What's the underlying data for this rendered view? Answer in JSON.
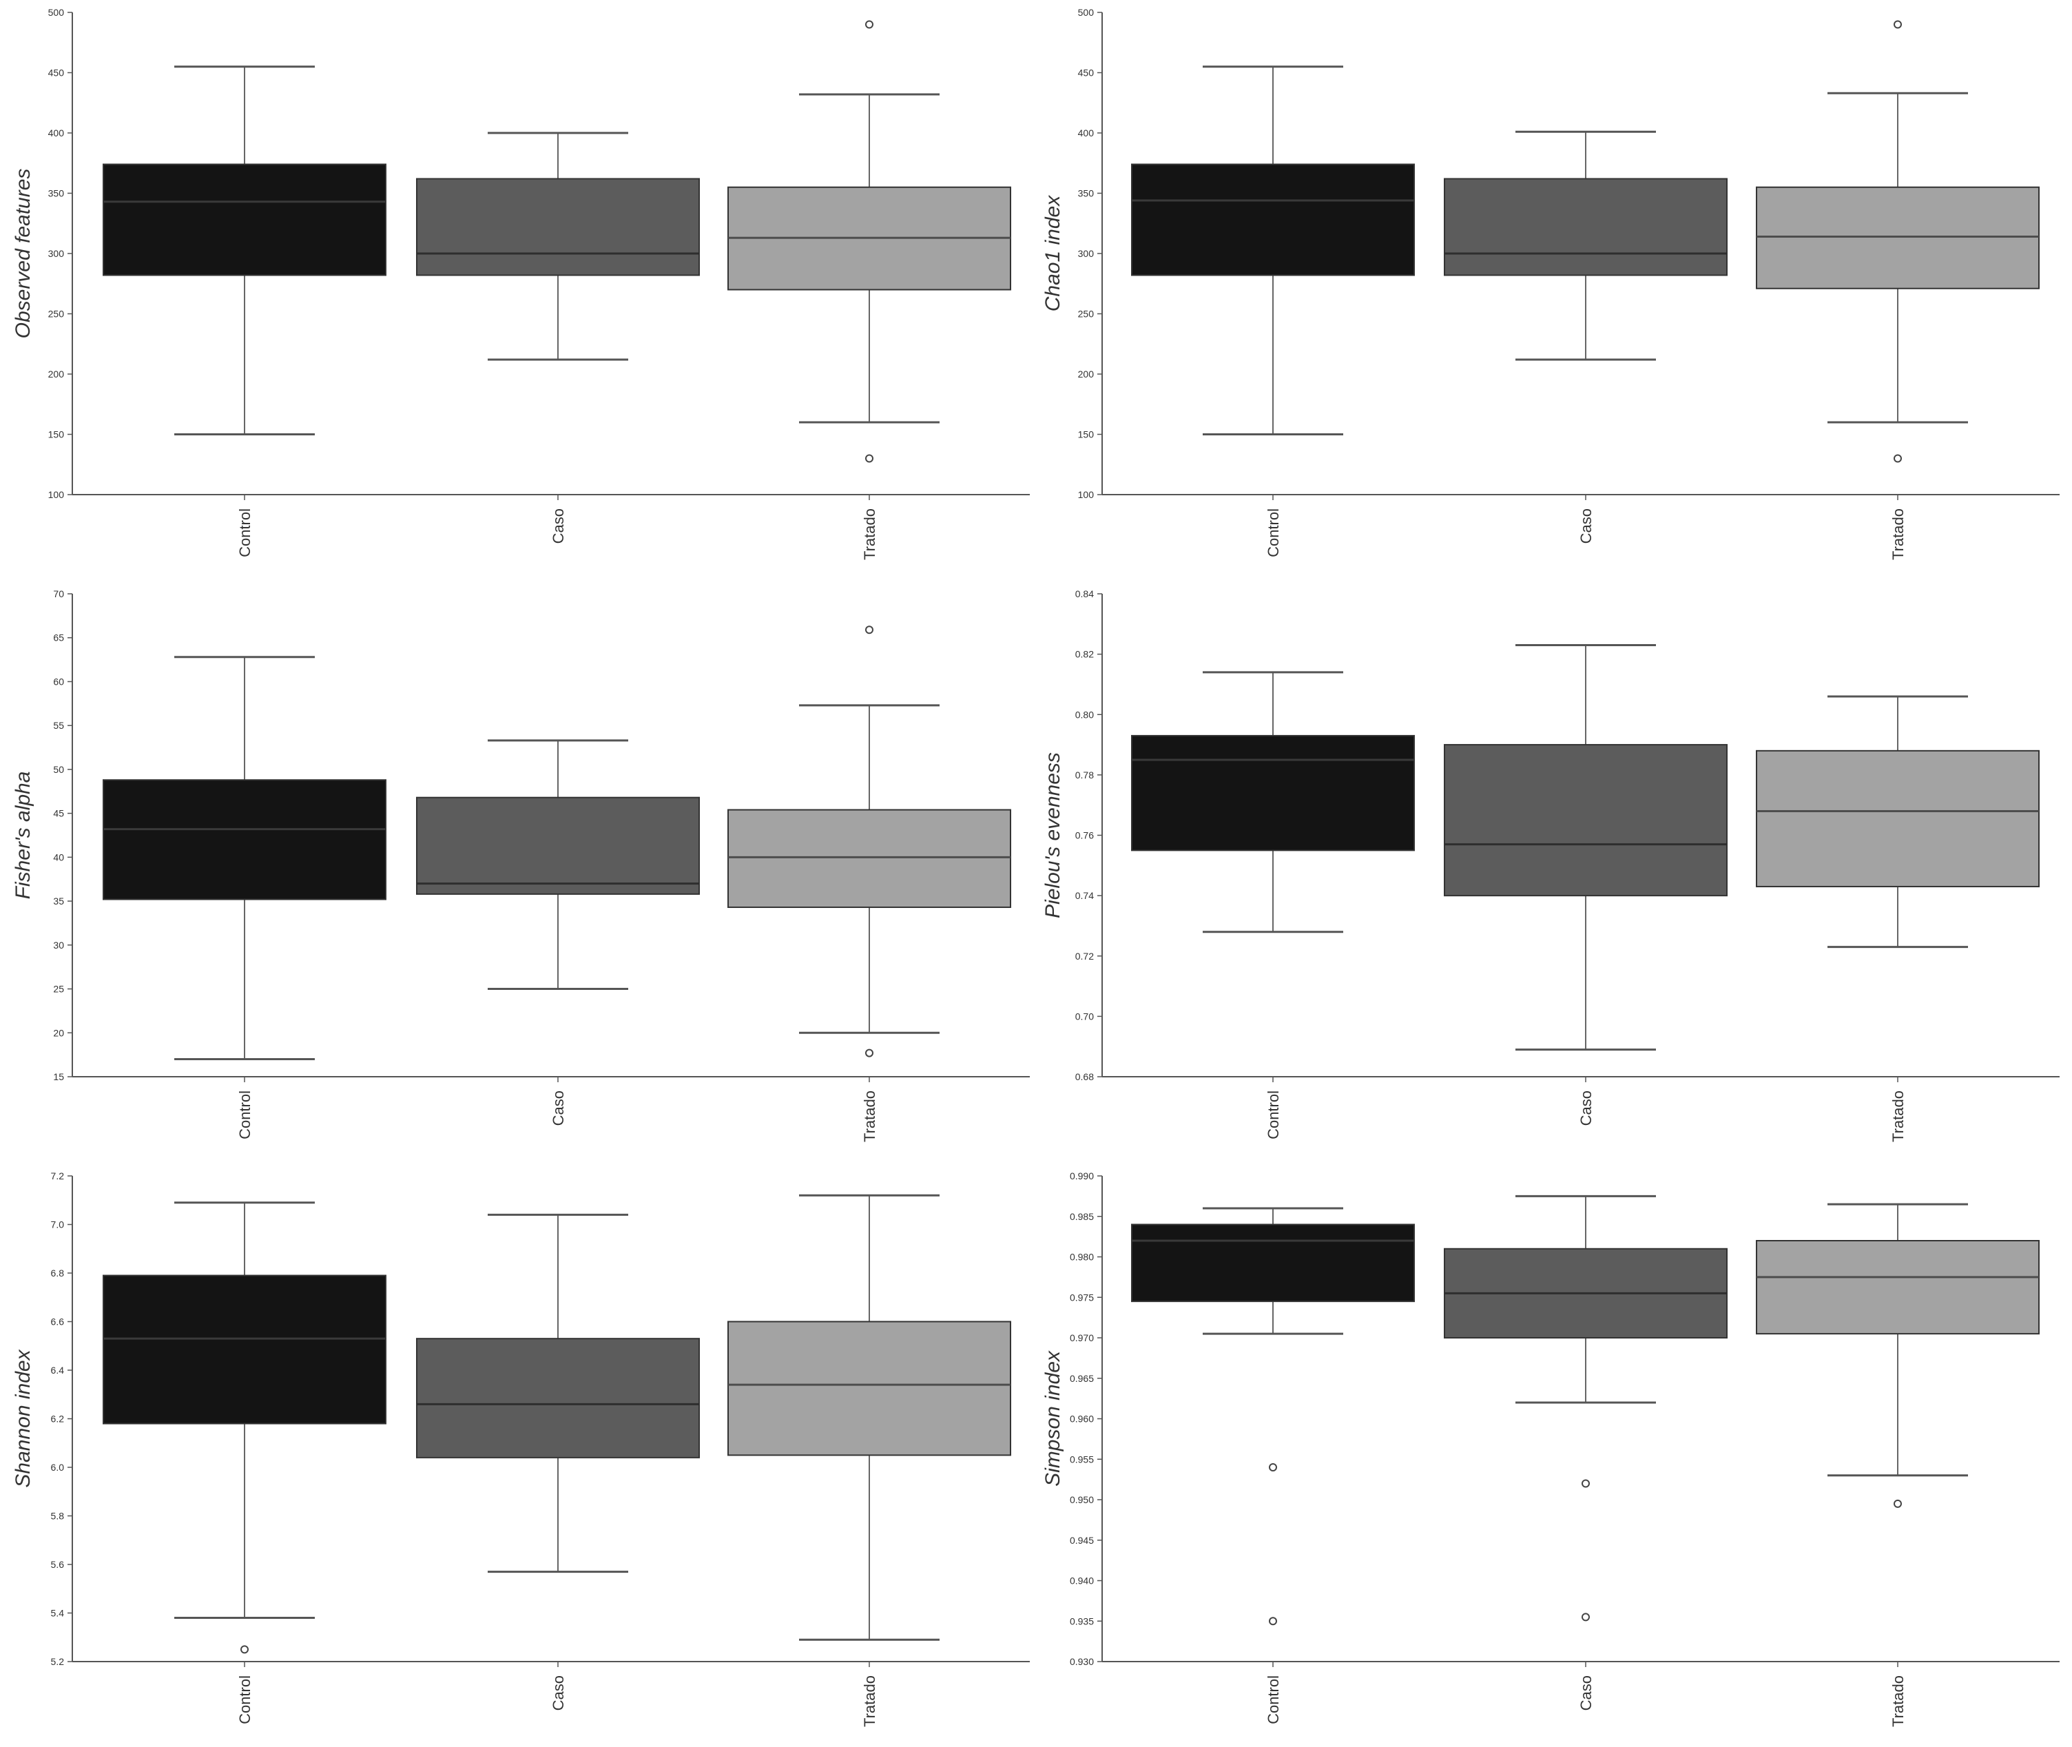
{
  "chart_data": [
    {
      "type": "box",
      "ylabel": "Observed features",
      "categories": [
        "Control",
        "Caso",
        "Tratado"
      ],
      "ylim": [
        100,
        500
      ],
      "yticks": [
        100,
        150,
        200,
        250,
        300,
        350,
        400,
        450,
        500
      ],
      "ytick_labels": [
        "100",
        "150",
        "200",
        "250",
        "300",
        "350",
        "400",
        "450",
        "500"
      ],
      "boxes": [
        {
          "whislo": 150,
          "q1": 282,
          "med": 343,
          "q3": 374,
          "whishi": 455,
          "fliers": []
        },
        {
          "whislo": 212,
          "q1": 282,
          "med": 300,
          "q3": 362,
          "whishi": 400,
          "fliers": []
        },
        {
          "whislo": 160,
          "q1": 270,
          "med": 313,
          "q3": 355,
          "whishi": 432,
          "fliers": [
            490,
            130
          ]
        }
      ]
    },
    {
      "type": "box",
      "ylabel": "Chao1 index",
      "categories": [
        "Control",
        "Caso",
        "Tratado"
      ],
      "ylim": [
        100,
        500
      ],
      "yticks": [
        100,
        150,
        200,
        250,
        300,
        350,
        400,
        450,
        500
      ],
      "ytick_labels": [
        "100",
        "150",
        "200",
        "250",
        "300",
        "350",
        "400",
        "450",
        "500"
      ],
      "boxes": [
        {
          "whislo": 150,
          "q1": 282,
          "med": 344,
          "q3": 374,
          "whishi": 455,
          "fliers": []
        },
        {
          "whislo": 212,
          "q1": 282,
          "med": 300,
          "q3": 362,
          "whishi": 401,
          "fliers": []
        },
        {
          "whislo": 160,
          "q1": 271,
          "med": 314,
          "q3": 355,
          "whishi": 433,
          "fliers": [
            490,
            130
          ]
        }
      ]
    },
    {
      "type": "box",
      "ylabel": "Fisher's alpha",
      "categories": [
        "Control",
        "Caso",
        "Tratado"
      ],
      "ylim": [
        15,
        70
      ],
      "yticks": [
        15,
        20,
        25,
        30,
        35,
        40,
        45,
        50,
        55,
        60,
        65,
        70
      ],
      "ytick_labels": [
        "15",
        "20",
        "25",
        "30",
        "35",
        "40",
        "45",
        "50",
        "55",
        "60",
        "65",
        "70"
      ],
      "boxes": [
        {
          "whislo": 17,
          "q1": 35.2,
          "med": 43.2,
          "q3": 48.8,
          "whishi": 62.8,
          "fliers": []
        },
        {
          "whislo": 25,
          "q1": 35.8,
          "med": 37,
          "q3": 46.8,
          "whishi": 53.3,
          "fliers": []
        },
        {
          "whislo": 20,
          "q1": 34.3,
          "med": 40,
          "q3": 45.4,
          "whishi": 57.3,
          "fliers": [
            65.9,
            17.7
          ]
        }
      ]
    },
    {
      "type": "box",
      "ylabel": "Pielou's evenness",
      "categories": [
        "Control",
        "Caso",
        "Tratado"
      ],
      "ylim": [
        0.68,
        0.84
      ],
      "yticks": [
        0.68,
        0.7,
        0.72,
        0.74,
        0.76,
        0.78,
        0.8,
        0.82,
        0.84
      ],
      "ytick_labels": [
        "0.68",
        "0.70",
        "0.72",
        "0.74",
        "0.76",
        "0.78",
        "0.80",
        "0.82",
        "0.84"
      ],
      "boxes": [
        {
          "whislo": 0.728,
          "q1": 0.755,
          "med": 0.785,
          "q3": 0.793,
          "whishi": 0.814,
          "fliers": []
        },
        {
          "whislo": 0.689,
          "q1": 0.74,
          "med": 0.757,
          "q3": 0.79,
          "whishi": 0.823,
          "fliers": []
        },
        {
          "whislo": 0.723,
          "q1": 0.743,
          "med": 0.768,
          "q3": 0.788,
          "whishi": 0.806,
          "fliers": []
        }
      ]
    },
    {
      "type": "box",
      "ylabel": "Shannon index",
      "categories": [
        "Control",
        "Caso",
        "Tratado"
      ],
      "ylim": [
        5.2,
        7.2
      ],
      "yticks": [
        5.2,
        5.4,
        5.6,
        5.8,
        6.0,
        6.2,
        6.4,
        6.6,
        6.8,
        7.0,
        7.2
      ],
      "ytick_labels": [
        "5.2",
        "5.4",
        "5.6",
        "5.8",
        "6.0",
        "6.2",
        "6.4",
        "6.6",
        "6.8",
        "7.0",
        "7.2"
      ],
      "boxes": [
        {
          "whislo": 5.38,
          "q1": 6.18,
          "med": 6.53,
          "q3": 6.79,
          "whishi": 7.09,
          "fliers": [
            5.25
          ]
        },
        {
          "whislo": 5.57,
          "q1": 6.04,
          "med": 6.26,
          "q3": 6.53,
          "whishi": 7.04,
          "fliers": []
        },
        {
          "whislo": 5.29,
          "q1": 6.05,
          "med": 6.34,
          "q3": 6.6,
          "whishi": 7.12,
          "fliers": []
        }
      ]
    },
    {
      "type": "box",
      "ylabel": "Simpson index",
      "categories": [
        "Control",
        "Caso",
        "Tratado"
      ],
      "ylim": [
        0.93,
        0.99
      ],
      "yticks": [
        0.93,
        0.935,
        0.94,
        0.945,
        0.95,
        0.955,
        0.96,
        0.965,
        0.97,
        0.975,
        0.98,
        0.985,
        0.99
      ],
      "ytick_labels": [
        "0.930",
        "0.935",
        "0.940",
        "0.945",
        "0.950",
        "0.955",
        "0.960",
        "0.965",
        "0.970",
        "0.975",
        "0.980",
        "0.985",
        "0.990"
      ],
      "boxes": [
        {
          "whislo": 0.9705,
          "q1": 0.9745,
          "med": 0.982,
          "q3": 0.984,
          "whishi": 0.986,
          "fliers": [
            0.954,
            0.935
          ]
        },
        {
          "whislo": 0.962,
          "q1": 0.97,
          "med": 0.9755,
          "q3": 0.981,
          "whishi": 0.9875,
          "fliers": [
            0.952,
            0.9355
          ]
        },
        {
          "whislo": 0.953,
          "q1": 0.9705,
          "med": 0.9775,
          "q3": 0.982,
          "whishi": 0.9865,
          "fliers": [
            0.9495
          ]
        }
      ]
    }
  ],
  "style": {
    "box_colors": [
      "#141414",
      "#5c5c5c",
      "#a3a3a3"
    ],
    "median_colors": [
      "#3a3a3a",
      "#2e2e2e",
      "#4d4d4d"
    ],
    "axis_color": "#555555",
    "whisker_color": "#666666"
  }
}
